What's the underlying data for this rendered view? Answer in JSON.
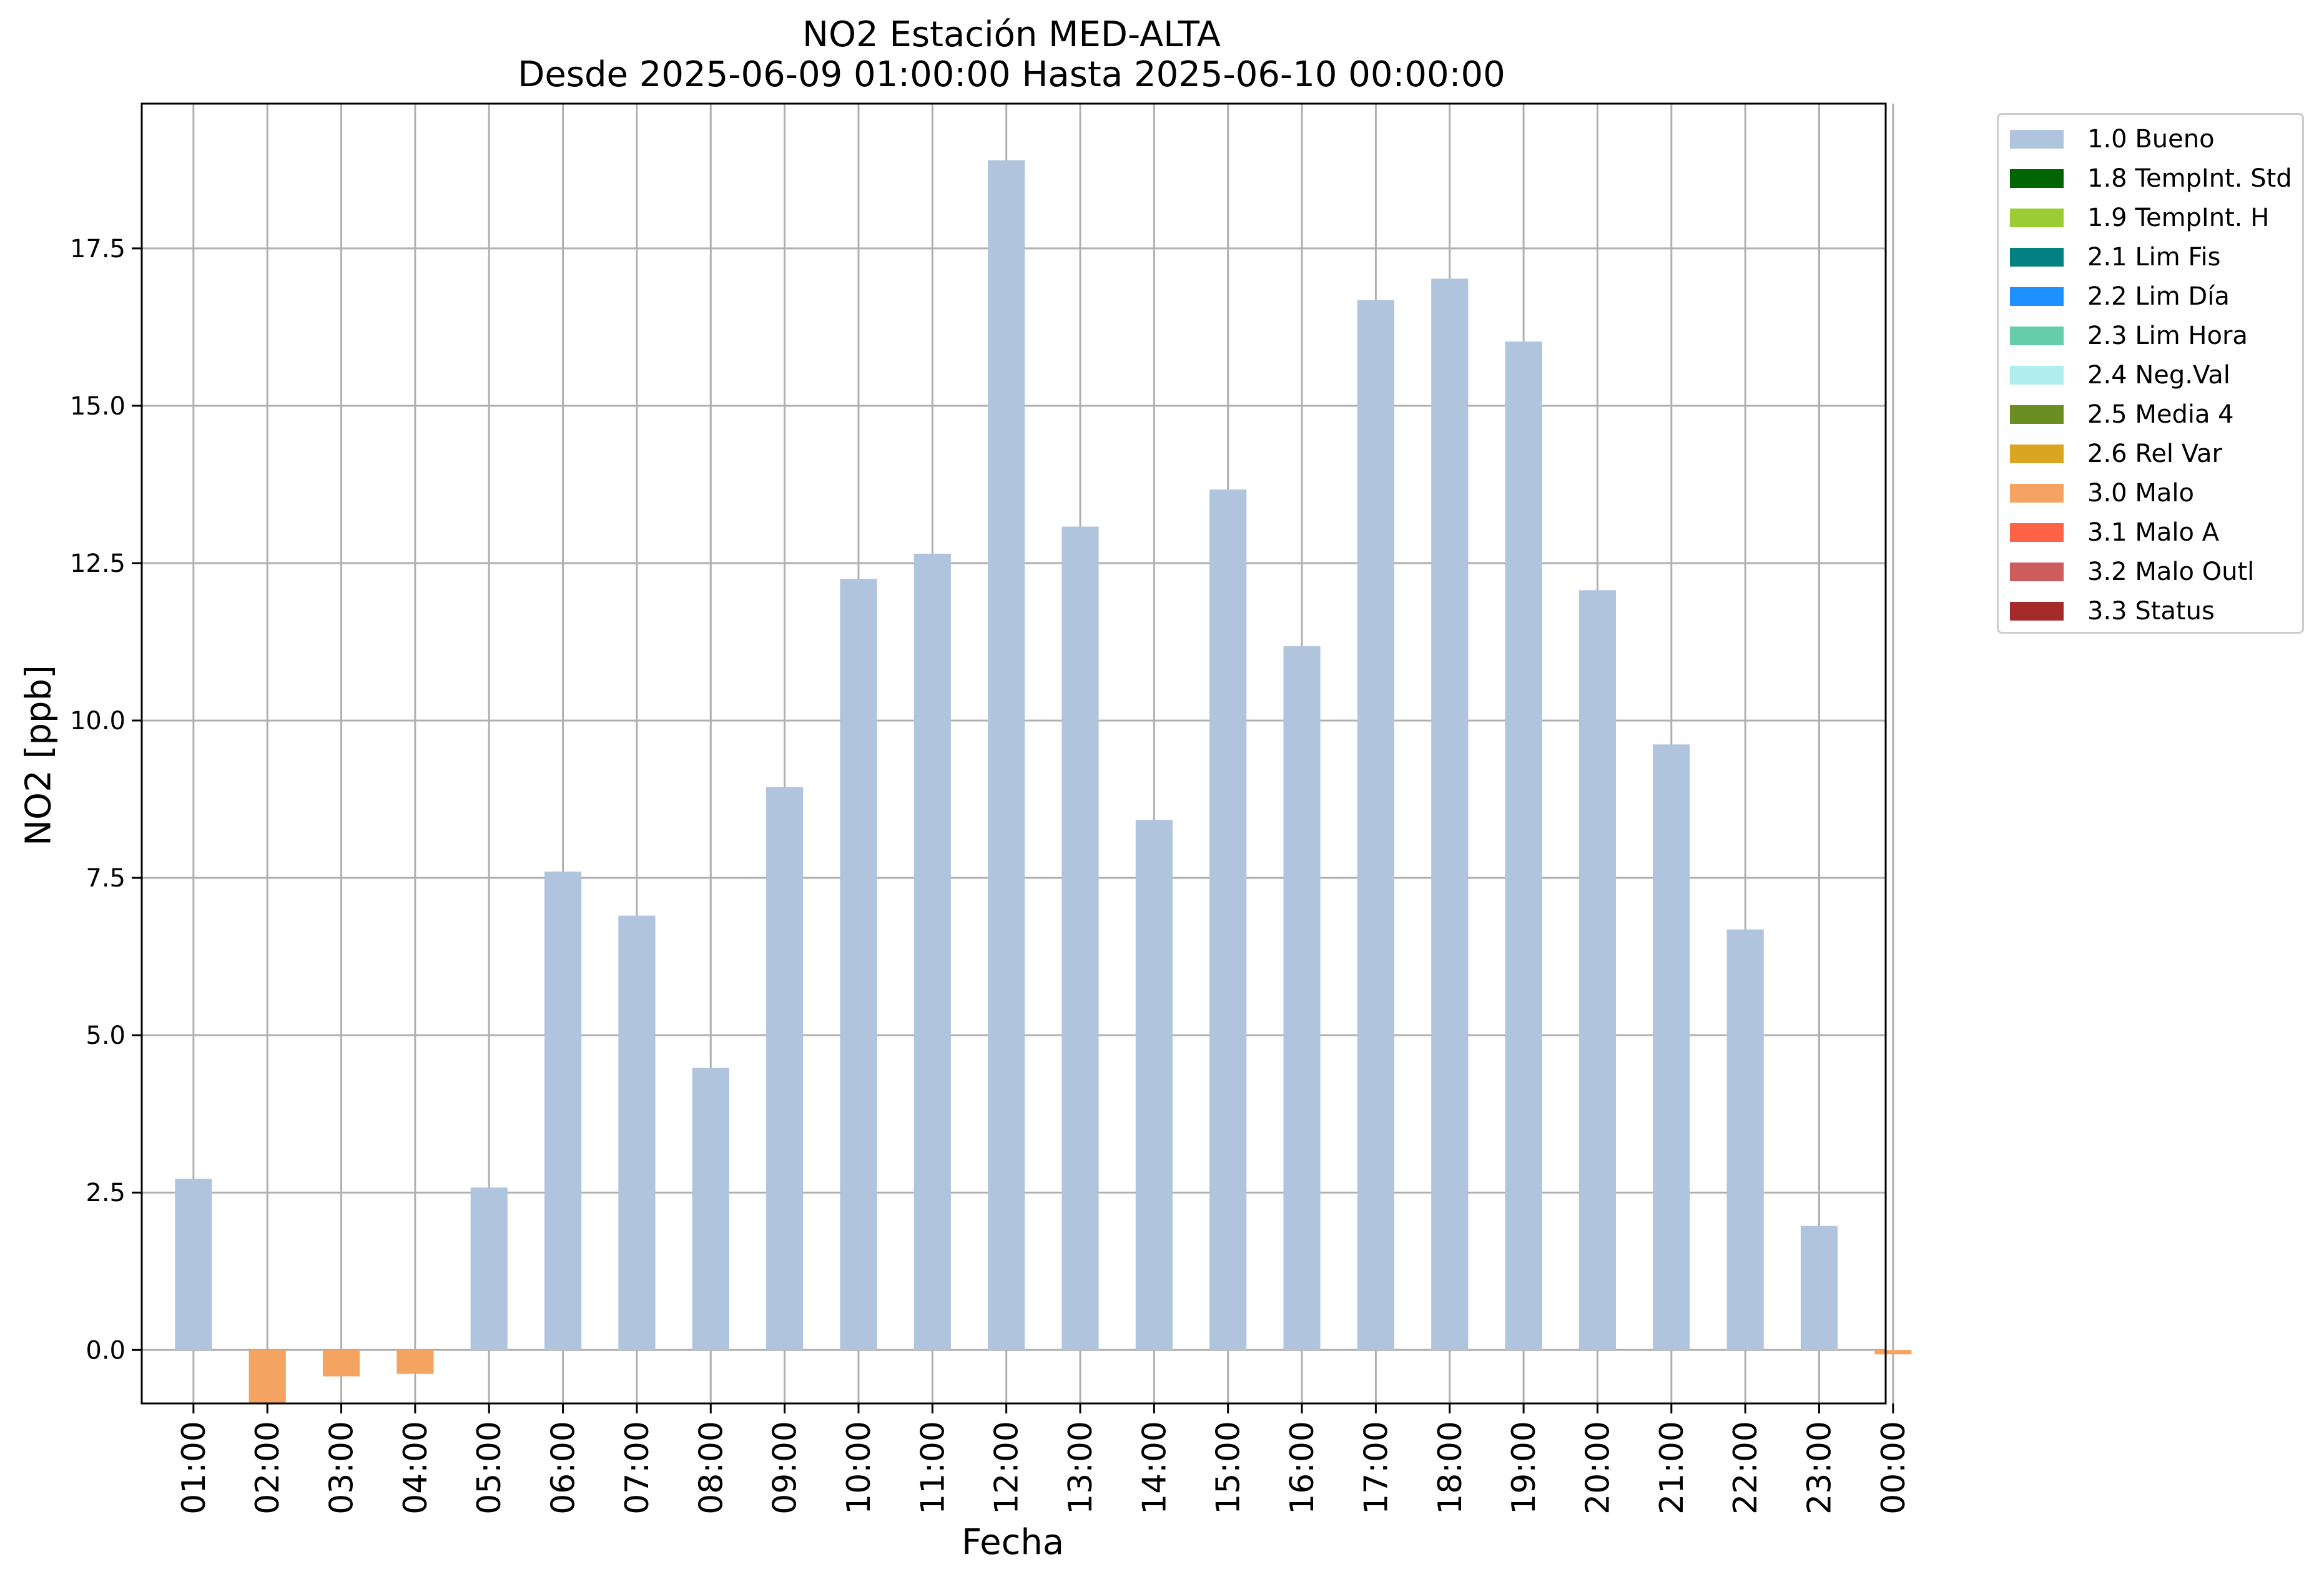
{
  "chart_data": {
    "type": "bar",
    "title": "NO2 Estación MED-ALTA",
    "subtitle": "Desde 2025-06-09 01:00:00 Hasta 2025-06-10 00:00:00",
    "xlabel": "Fecha",
    "ylabel": "NO2 [ppb]",
    "ylim": [
      -0.85,
      19.8
    ],
    "yticks": [
      "0.0",
      "2.5",
      "5.0",
      "7.5",
      "10.0",
      "12.5",
      "15.0",
      "17.5"
    ],
    "grid": true,
    "legend_position": "outside-top-right",
    "categories": [
      "01:00",
      "02:00",
      "03:00",
      "04:00",
      "05:00",
      "06:00",
      "07:00",
      "08:00",
      "09:00",
      "10:00",
      "11:00",
      "12:00",
      "13:00",
      "14:00",
      "15:00",
      "16:00",
      "17:00",
      "18:00",
      "19:00",
      "20:00",
      "21:00",
      "22:00",
      "23:00",
      "00:00"
    ],
    "values": [
      2.72,
      -0.85,
      -0.42,
      -0.38,
      2.58,
      7.6,
      6.9,
      4.48,
      8.94,
      12.25,
      12.65,
      18.9,
      13.08,
      8.42,
      13.67,
      11.18,
      16.68,
      17.02,
      16.02,
      12.07,
      9.62,
      6.68,
      1.97,
      -0.07
    ],
    "flags": [
      "1.0 Bueno",
      "3.0 Malo",
      "3.0 Malo",
      "3.0 Malo",
      "1.0 Bueno",
      "1.0 Bueno",
      "1.0 Bueno",
      "1.0 Bueno",
      "1.0 Bueno",
      "1.0 Bueno",
      "1.0 Bueno",
      "1.0 Bueno",
      "1.0 Bueno",
      "1.0 Bueno",
      "1.0 Bueno",
      "1.0 Bueno",
      "1.0 Bueno",
      "1.0 Bueno",
      "1.0 Bueno",
      "1.0 Bueno",
      "1.0 Bueno",
      "1.0 Bueno",
      "1.0 Bueno",
      "3.0 Malo"
    ],
    "legend": [
      {
        "label": "1.0 Bueno",
        "color": "#b0c4de"
      },
      {
        "label": "1.8 TempInt. Std",
        "color": "#006400"
      },
      {
        "label": "1.9 TempInt. H",
        "color": "#9acd32"
      },
      {
        "label": "2.1 Lim Fis",
        "color": "#008080"
      },
      {
        "label": "2.2 Lim Día",
        "color": "#1e90ff"
      },
      {
        "label": "2.3 Lim Hora",
        "color": "#66cdaa"
      },
      {
        "label": "2.4 Neg.Val",
        "color": "#afeeee"
      },
      {
        "label": "2.5 Media 4",
        "color": "#6b8e23"
      },
      {
        "label": "2.6 Rel Var",
        "color": "#daa520"
      },
      {
        "label": "3.0 Malo",
        "color": "#f4a460"
      },
      {
        "label": "3.1 Malo A",
        "color": "#ff6347"
      },
      {
        "label": "3.2 Malo Outl",
        "color": "#cd5c5c"
      },
      {
        "label": "3.3 Status",
        "color": "#a52a2a"
      }
    ]
  }
}
